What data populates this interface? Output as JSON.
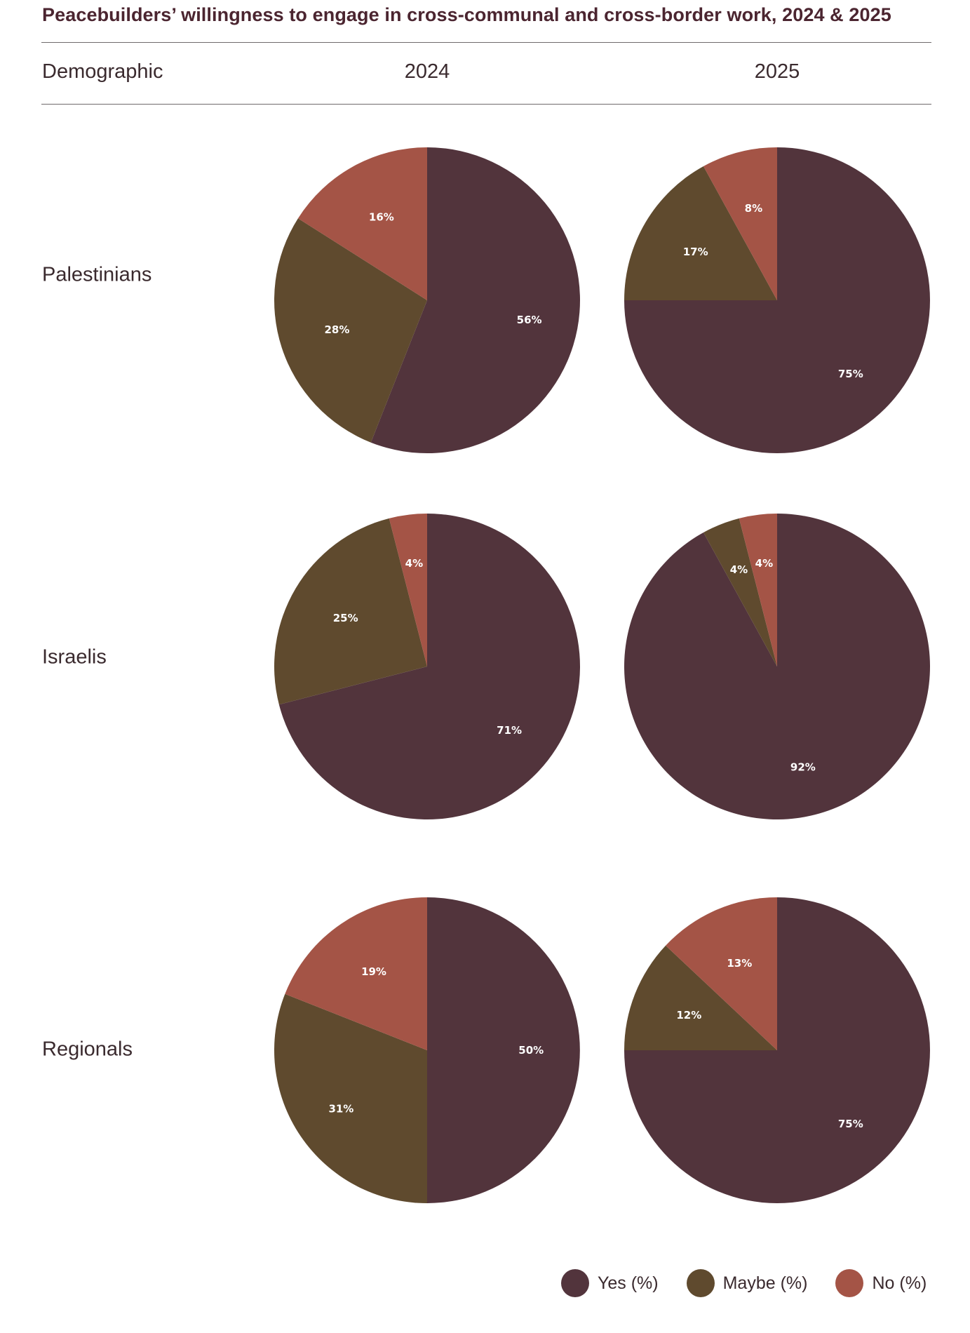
{
  "colors": {
    "yes": "#52343c",
    "maybe": "#5f4a2e",
    "no": "#a45446"
  },
  "header": {
    "title": "Peacebuilders’ willingness to engage in cross-communal and cross-border work, 2024 & 2025",
    "col_demographic": "Demographic",
    "col_2024": "2024",
    "col_2025": "2025"
  },
  "rows": [
    {
      "label": "Palestinians"
    },
    {
      "label": "Israelis"
    },
    {
      "label": "Regionals"
    }
  ],
  "legend": [
    {
      "label": "Yes (%)",
      "color": "#52343c"
    },
    {
      "label": "Maybe (%)",
      "color": "#5f4a2e"
    },
    {
      "label": "No (%)",
      "color": "#a45446"
    }
  ],
  "chart_data": [
    {
      "type": "pie",
      "row": "Palestinians",
      "year": "2024",
      "slices": [
        {
          "category": "Yes",
          "value": 56,
          "label": "56%"
        },
        {
          "category": "Maybe",
          "value": 28,
          "label": "28%"
        },
        {
          "category": "No",
          "value": 16,
          "label": "16%"
        }
      ]
    },
    {
      "type": "pie",
      "row": "Palestinians",
      "year": "2025",
      "slices": [
        {
          "category": "Yes",
          "value": 75,
          "label": "75%"
        },
        {
          "category": "Maybe",
          "value": 17,
          "label": "17%"
        },
        {
          "category": "No",
          "value": 8,
          "label": "8%"
        }
      ]
    },
    {
      "type": "pie",
      "row": "Israelis",
      "year": "2024",
      "slices": [
        {
          "category": "Yes",
          "value": 71,
          "label": "71%"
        },
        {
          "category": "Maybe",
          "value": 25,
          "label": "25%"
        },
        {
          "category": "No",
          "value": 4,
          "label": "4%"
        }
      ]
    },
    {
      "type": "pie",
      "row": "Israelis",
      "year": "2025",
      "slices": [
        {
          "category": "Yes",
          "value": 92,
          "label": "92%"
        },
        {
          "category": "Maybe",
          "value": 4,
          "label": "4%"
        },
        {
          "category": "No",
          "value": 4,
          "label": "4%"
        }
      ]
    },
    {
      "type": "pie",
      "row": "Regionals",
      "year": "2024",
      "slices": [
        {
          "category": "Yes",
          "value": 50,
          "label": "50%"
        },
        {
          "category": "Maybe",
          "value": 31,
          "label": "31%"
        },
        {
          "category": "No",
          "value": 19,
          "label": "19%"
        }
      ]
    },
    {
      "type": "pie",
      "row": "Regionals",
      "year": "2025",
      "slices": [
        {
          "category": "Yes",
          "value": 75,
          "label": "75%"
        },
        {
          "category": "Maybe",
          "value": 12,
          "label": "12%"
        },
        {
          "category": "No",
          "value": 13,
          "label": "13%"
        }
      ]
    }
  ]
}
